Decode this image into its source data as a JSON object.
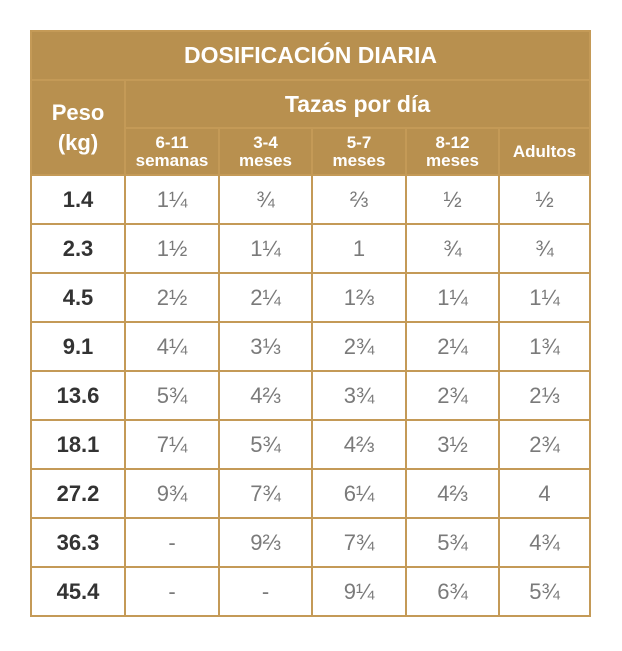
{
  "title": "DOSIFICACIÓN DIARIA",
  "weight_header": "Peso\n(kg)",
  "weight_header_lines": [
    "Peso",
    "(kg)"
  ],
  "cups_header": "Tazas por día",
  "colors": {
    "header": "#b8904f",
    "border": "#c49a57",
    "weight_text": "#333333",
    "value_text": "#7a7a7a"
  },
  "columns": [
    [
      "6-11",
      "semanas"
    ],
    [
      "3-4",
      "meses"
    ],
    [
      "5-7",
      "meses"
    ],
    [
      "8-12",
      "meses"
    ],
    [
      "Adultos"
    ]
  ],
  "rows": [
    {
      "weight": "1.4",
      "values": [
        "1¼",
        "¾",
        "⅔",
        "½",
        "½"
      ]
    },
    {
      "weight": "2.3",
      "values": [
        "1½",
        "1¼",
        "1",
        "¾",
        "¾"
      ]
    },
    {
      "weight": "4.5",
      "values": [
        "2½",
        "2¼",
        "1⅔",
        "1¼",
        "1¼"
      ]
    },
    {
      "weight": "9.1",
      "values": [
        "4¼",
        "3⅓",
        "2¾",
        "2¼",
        "1¾"
      ]
    },
    {
      "weight": "13.6",
      "values": [
        "5¾",
        "4⅔",
        "3¾",
        "2¾",
        "2⅓"
      ]
    },
    {
      "weight": "18.1",
      "values": [
        "7¼",
        "5¾",
        "4⅔",
        "3½",
        "2¾"
      ]
    },
    {
      "weight": "27.2",
      "values": [
        "9¾",
        "7¾",
        "6¼",
        "4⅔",
        "4"
      ]
    },
    {
      "weight": "36.3",
      "values": [
        "-",
        "9⅔",
        "7¾",
        "5¾",
        "4¾"
      ]
    },
    {
      "weight": "45.4",
      "values": [
        "-",
        "-",
        "9¼",
        "6¾",
        "5¾"
      ]
    }
  ]
}
